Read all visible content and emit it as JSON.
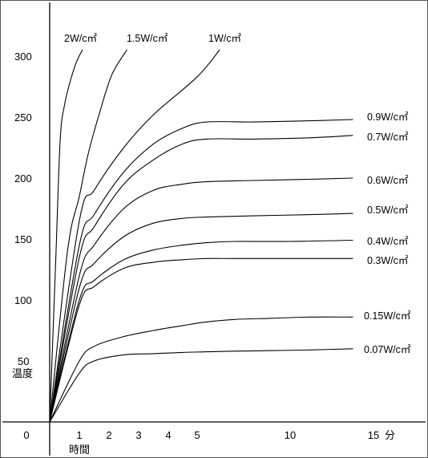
{
  "chart_data": {
    "type": "line",
    "title": "",
    "xlabel": "時間",
    "ylabel": "温度",
    "x_unit": "分",
    "xlim": [
      0,
      18
    ],
    "ylim": [
      0,
      330
    ],
    "x_ticks": [
      0,
      1,
      2,
      3,
      4,
      5,
      10,
      15
    ],
    "x_tick_labels": [
      "0",
      "1",
      "2",
      "3",
      "4",
      "5",
      "10",
      "15"
    ],
    "y_ticks": [
      50,
      100,
      150,
      200,
      250,
      300
    ],
    "y_tick_labels": [
      "50",
      "100",
      "150",
      "200",
      "250",
      "300"
    ],
    "grid": false,
    "legend": "none",
    "series": [
      {
        "name": "2W/c㎡",
        "x": [
          0,
          0.2,
          0.35,
          0.5,
          0.7,
          0.9,
          1.1
        ],
        "y": [
          0,
          130,
          230,
          260,
          280,
          295,
          305
        ]
      },
      {
        "name": "1.5W/c㎡",
        "x": [
          0,
          0.6,
          1.0,
          1.3,
          1.7,
          2.1,
          2.6
        ],
        "y": [
          0,
          140,
          185,
          220,
          255,
          285,
          305
        ]
      },
      {
        "name": "1W/c㎡",
        "x": [
          0,
          1.0,
          1.5,
          2.5,
          3.5,
          5.0,
          6.2
        ],
        "y": [
          0,
          165,
          190,
          225,
          252,
          283,
          305
        ]
      },
      {
        "name": "0.9W/c㎡",
        "x": [
          0,
          1.0,
          1.5,
          2.5,
          3.5,
          4.5,
          5.5,
          8,
          12,
          16.5
        ],
        "y": [
          0,
          145,
          170,
          205,
          228,
          241,
          246,
          246,
          247,
          248
        ]
      },
      {
        "name": "0.7W/c㎡",
        "x": [
          0,
          1.0,
          1.5,
          2.5,
          3.5,
          4.5,
          5.5,
          8,
          12,
          16.5
        ],
        "y": [
          0,
          135,
          160,
          195,
          215,
          228,
          232,
          232,
          233,
          235
        ]
      },
      {
        "name": "0.6W/c㎡",
        "x": [
          0,
          1.0,
          1.5,
          2.5,
          3.5,
          4.5,
          5.5,
          8,
          12,
          16.5
        ],
        "y": [
          0,
          120,
          145,
          175,
          190,
          195,
          197,
          198,
          199,
          200
        ]
      },
      {
        "name": "0.5W/c㎡",
        "x": [
          0,
          1.0,
          1.5,
          2.5,
          3.5,
          4.5,
          5.5,
          8,
          12,
          16.5
        ],
        "y": [
          0,
          110,
          130,
          152,
          163,
          167,
          168,
          169,
          170,
          171
        ]
      },
      {
        "name": "0.4W/c㎡",
        "x": [
          0,
          1.0,
          1.5,
          2.5,
          3.5,
          4.5,
          5.5,
          7,
          10,
          16.5
        ],
        "y": [
          0,
          100,
          116,
          133,
          141,
          145,
          147,
          148,
          148,
          149
        ]
      },
      {
        "name": "0.3W/c㎡",
        "x": [
          0,
          1.0,
          1.5,
          2.5,
          3.5,
          4.5,
          5.5,
          7,
          10,
          16.5
        ],
        "y": [
          0,
          96,
          111,
          126,
          131,
          133,
          134,
          134,
          134,
          134
        ]
      },
      {
        "name": "0.15W/c㎡",
        "x": [
          0,
          1.0,
          1.5,
          2.5,
          3.5,
          4.5,
          5.5,
          7,
          9,
          12,
          16.5
        ],
        "y": [
          0,
          50,
          62,
          70,
          75,
          79,
          82,
          84,
          85,
          86,
          86
        ]
      },
      {
        "name": "0.07W/c㎡",
        "x": [
          0,
          1.0,
          1.5,
          2.5,
          3.5,
          4.5,
          5.5,
          7,
          9,
          12,
          16.5
        ],
        "y": [
          0,
          40,
          50,
          55,
          56,
          57,
          57.5,
          58,
          58.5,
          59,
          60
        ]
      }
    ]
  }
}
